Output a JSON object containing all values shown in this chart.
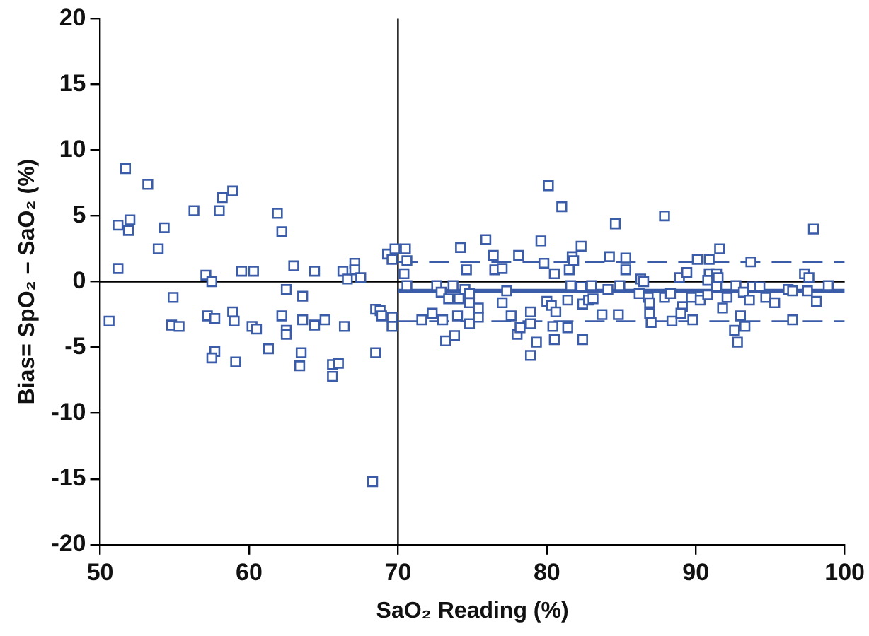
{
  "chart_data": {
    "type": "scatter",
    "xlabel": "SaO₂ Reading (%)",
    "ylabel": "Bias= SpO₂ – SaO₂ (%)",
    "xlim": [
      50,
      100
    ],
    "xticks": [
      50,
      60,
      70,
      80,
      90,
      100
    ],
    "ylim": [
      -20,
      20
    ],
    "yticks": [
      -20,
      -15,
      -10,
      -5,
      0,
      5,
      10,
      15,
      20
    ],
    "grid": false,
    "legend": false,
    "marker": "square",
    "series": [
      {
        "type": "scatter",
        "color": "#3b5ca8",
        "x": [
          50.6,
          51.7,
          51.2,
          52.0,
          51.9,
          51.2,
          53.2,
          53.9,
          54.3,
          54.9,
          54.8,
          55.3,
          56.3,
          57.1,
          57.5,
          57.2,
          57.7,
          57.7,
          57.5,
          58.0,
          58.2,
          58.9,
          58.9,
          59.0,
          59.1,
          59.5,
          60.3,
          60.2,
          60.5,
          61.3,
          61.9,
          62.2,
          62.5,
          62.2,
          62.5,
          62.5,
          63.0,
          63.6,
          63.6,
          63.5,
          63.4,
          64.4,
          64.4,
          65.1,
          65.6,
          65.6,
          66.0,
          66.4,
          66.3,
          66.6,
          67.1,
          67.1,
          67.5,
          68.3,
          68.5,
          68.5,
          68.8,
          68.9,
          69.3,
          69.6,
          69.6,
          69.6,
          69.8,
          70.5,
          70.6,
          70.4,
          70.6,
          71.6,
          72.3,
          72.6,
          72.9,
          73.0,
          73.2,
          73.4,
          73.7,
          73.8,
          74.0,
          74.1,
          74.2,
          74.5,
          74.6,
          74.8,
          74.8,
          74.8,
          75.4,
          75.4,
          75.9,
          76.4,
          76.5,
          77.0,
          77.0,
          77.3,
          77.6,
          78.1,
          78.0,
          78.2,
          78.9,
          78.9,
          78.9,
          79.3,
          79.6,
          79.8,
          80.0,
          80.1,
          80.3,
          80.5,
          80.4,
          80.5,
          80.6,
          81.0,
          81.4,
          81.4,
          81.5,
          81.6,
          81.7,
          81.8,
          82.3,
          82.4,
          82.3,
          82.4,
          82.8,
          83.0,
          83.1,
          83.7,
          84.2,
          84.1,
          84.6,
          84.8,
          84.9,
          85.3,
          85.3,
          86.2,
          86.3,
          86.5,
          86.8,
          86.9,
          86.9,
          87.0,
          87.9,
          87.9,
          88.3,
          88.4,
          88.9,
          89.1,
          89.0,
          89.4,
          89.7,
          89.8,
          90.1,
          90.3,
          90.9,
          90.9,
          90.8,
          90.8,
          91.4,
          91.5,
          91.6,
          91.4,
          91.8,
          92.1,
          92.7,
          92.6,
          92.8,
          93.0,
          93.3,
          93.2,
          93.7,
          93.6,
          93.8,
          94.3,
          94.7,
          95.3,
          96.2,
          96.5,
          96.5,
          97.3,
          97.5,
          97.6,
          97.9,
          98.1,
          98.9
        ],
        "values": [
          -3.0,
          8.6,
          4.3,
          4.7,
          3.9,
          1.0,
          7.4,
          2.5,
          4.1,
          -1.2,
          -3.3,
          -3.4,
          5.4,
          0.5,
          0.0,
          -2.6,
          -2.8,
          -5.3,
          -5.8,
          5.4,
          6.4,
          6.9,
          -2.3,
          -3.0,
          -6.1,
          0.8,
          0.8,
          -3.4,
          -3.6,
          -5.1,
          5.2,
          3.8,
          -0.6,
          -2.6,
          -3.7,
          -4.0,
          1.2,
          -1.1,
          -2.9,
          -5.4,
          -6.4,
          0.8,
          -3.3,
          -2.9,
          -7.2,
          -6.3,
          -6.2,
          -3.4,
          0.8,
          0.2,
          1.4,
          0.9,
          0.3,
          -15.2,
          -5.4,
          -2.1,
          -2.2,
          -2.6,
          2.1,
          1.7,
          -2.7,
          -3.4,
          2.5,
          2.5,
          1.6,
          0.6,
          -0.3,
          -2.9,
          -2.4,
          -0.3,
          -0.8,
          -2.9,
          -4.5,
          -1.3,
          -0.3,
          -4.1,
          -2.6,
          -1.3,
          2.6,
          -0.6,
          0.9,
          -0.9,
          -1.6,
          -3.2,
          -2.0,
          -2.7,
          3.2,
          2.0,
          0.9,
          1.0,
          -1.6,
          -0.7,
          -2.6,
          2.0,
          -4.0,
          -3.5,
          -2.3,
          -3.2,
          -5.6,
          -4.6,
          3.1,
          1.4,
          -1.5,
          7.3,
          -1.8,
          0.6,
          -3.4,
          -4.4,
          -2.3,
          5.7,
          -3.5,
          -1.4,
          0.9,
          -0.3,
          1.9,
          1.6,
          -0.4,
          -4.4,
          2.7,
          -1.7,
          -1.4,
          -0.3,
          -1.3,
          -2.5,
          1.9,
          -0.6,
          4.4,
          -2.5,
          -0.3,
          1.8,
          0.9,
          -0.9,
          0.2,
          0.0,
          -1.2,
          -1.6,
          -2.4,
          -3.1,
          5.0,
          -1.2,
          -0.9,
          -3.0,
          0.3,
          -1.9,
          -2.4,
          0.7,
          -1.2,
          -2.9,
          1.7,
          -1.4,
          1.7,
          0.6,
          0.1,
          -1.0,
          0.6,
          0.3,
          2.5,
          -0.4,
          -2.0,
          -1.2,
          -0.3,
          -3.7,
          -4.6,
          -2.6,
          -3.4,
          -0.8,
          1.5,
          -1.4,
          -0.4,
          -0.4,
          -1.2,
          -1.6,
          -0.6,
          -2.9,
          -0.7,
          0.6,
          -0.7,
          0.3,
          4.0,
          -1.5,
          -0.3
        ]
      },
      {
        "type": "line",
        "color": "#3b5ca8",
        "x": [
          70,
          100
        ],
        "values": [
          -0.7,
          -0.7
        ],
        "marker": "none",
        "line_style": "solid"
      },
      {
        "type": "line",
        "color": "#3b5ca8",
        "x": [
          70,
          100
        ],
        "values": [
          1.5,
          1.5
        ],
        "marker": "none",
        "line_style": "dashed"
      },
      {
        "type": "line",
        "color": "#3b5ca8",
        "x": [
          70,
          100
        ],
        "values": [
          -3.0,
          -3.0
        ],
        "marker": "none",
        "line_style": "dashed"
      }
    ],
    "ref_lines": [
      {
        "axis": "x",
        "value": 70,
        "color": "#000000"
      },
      {
        "axis": "y",
        "value": 0,
        "color": "#000000"
      }
    ]
  }
}
